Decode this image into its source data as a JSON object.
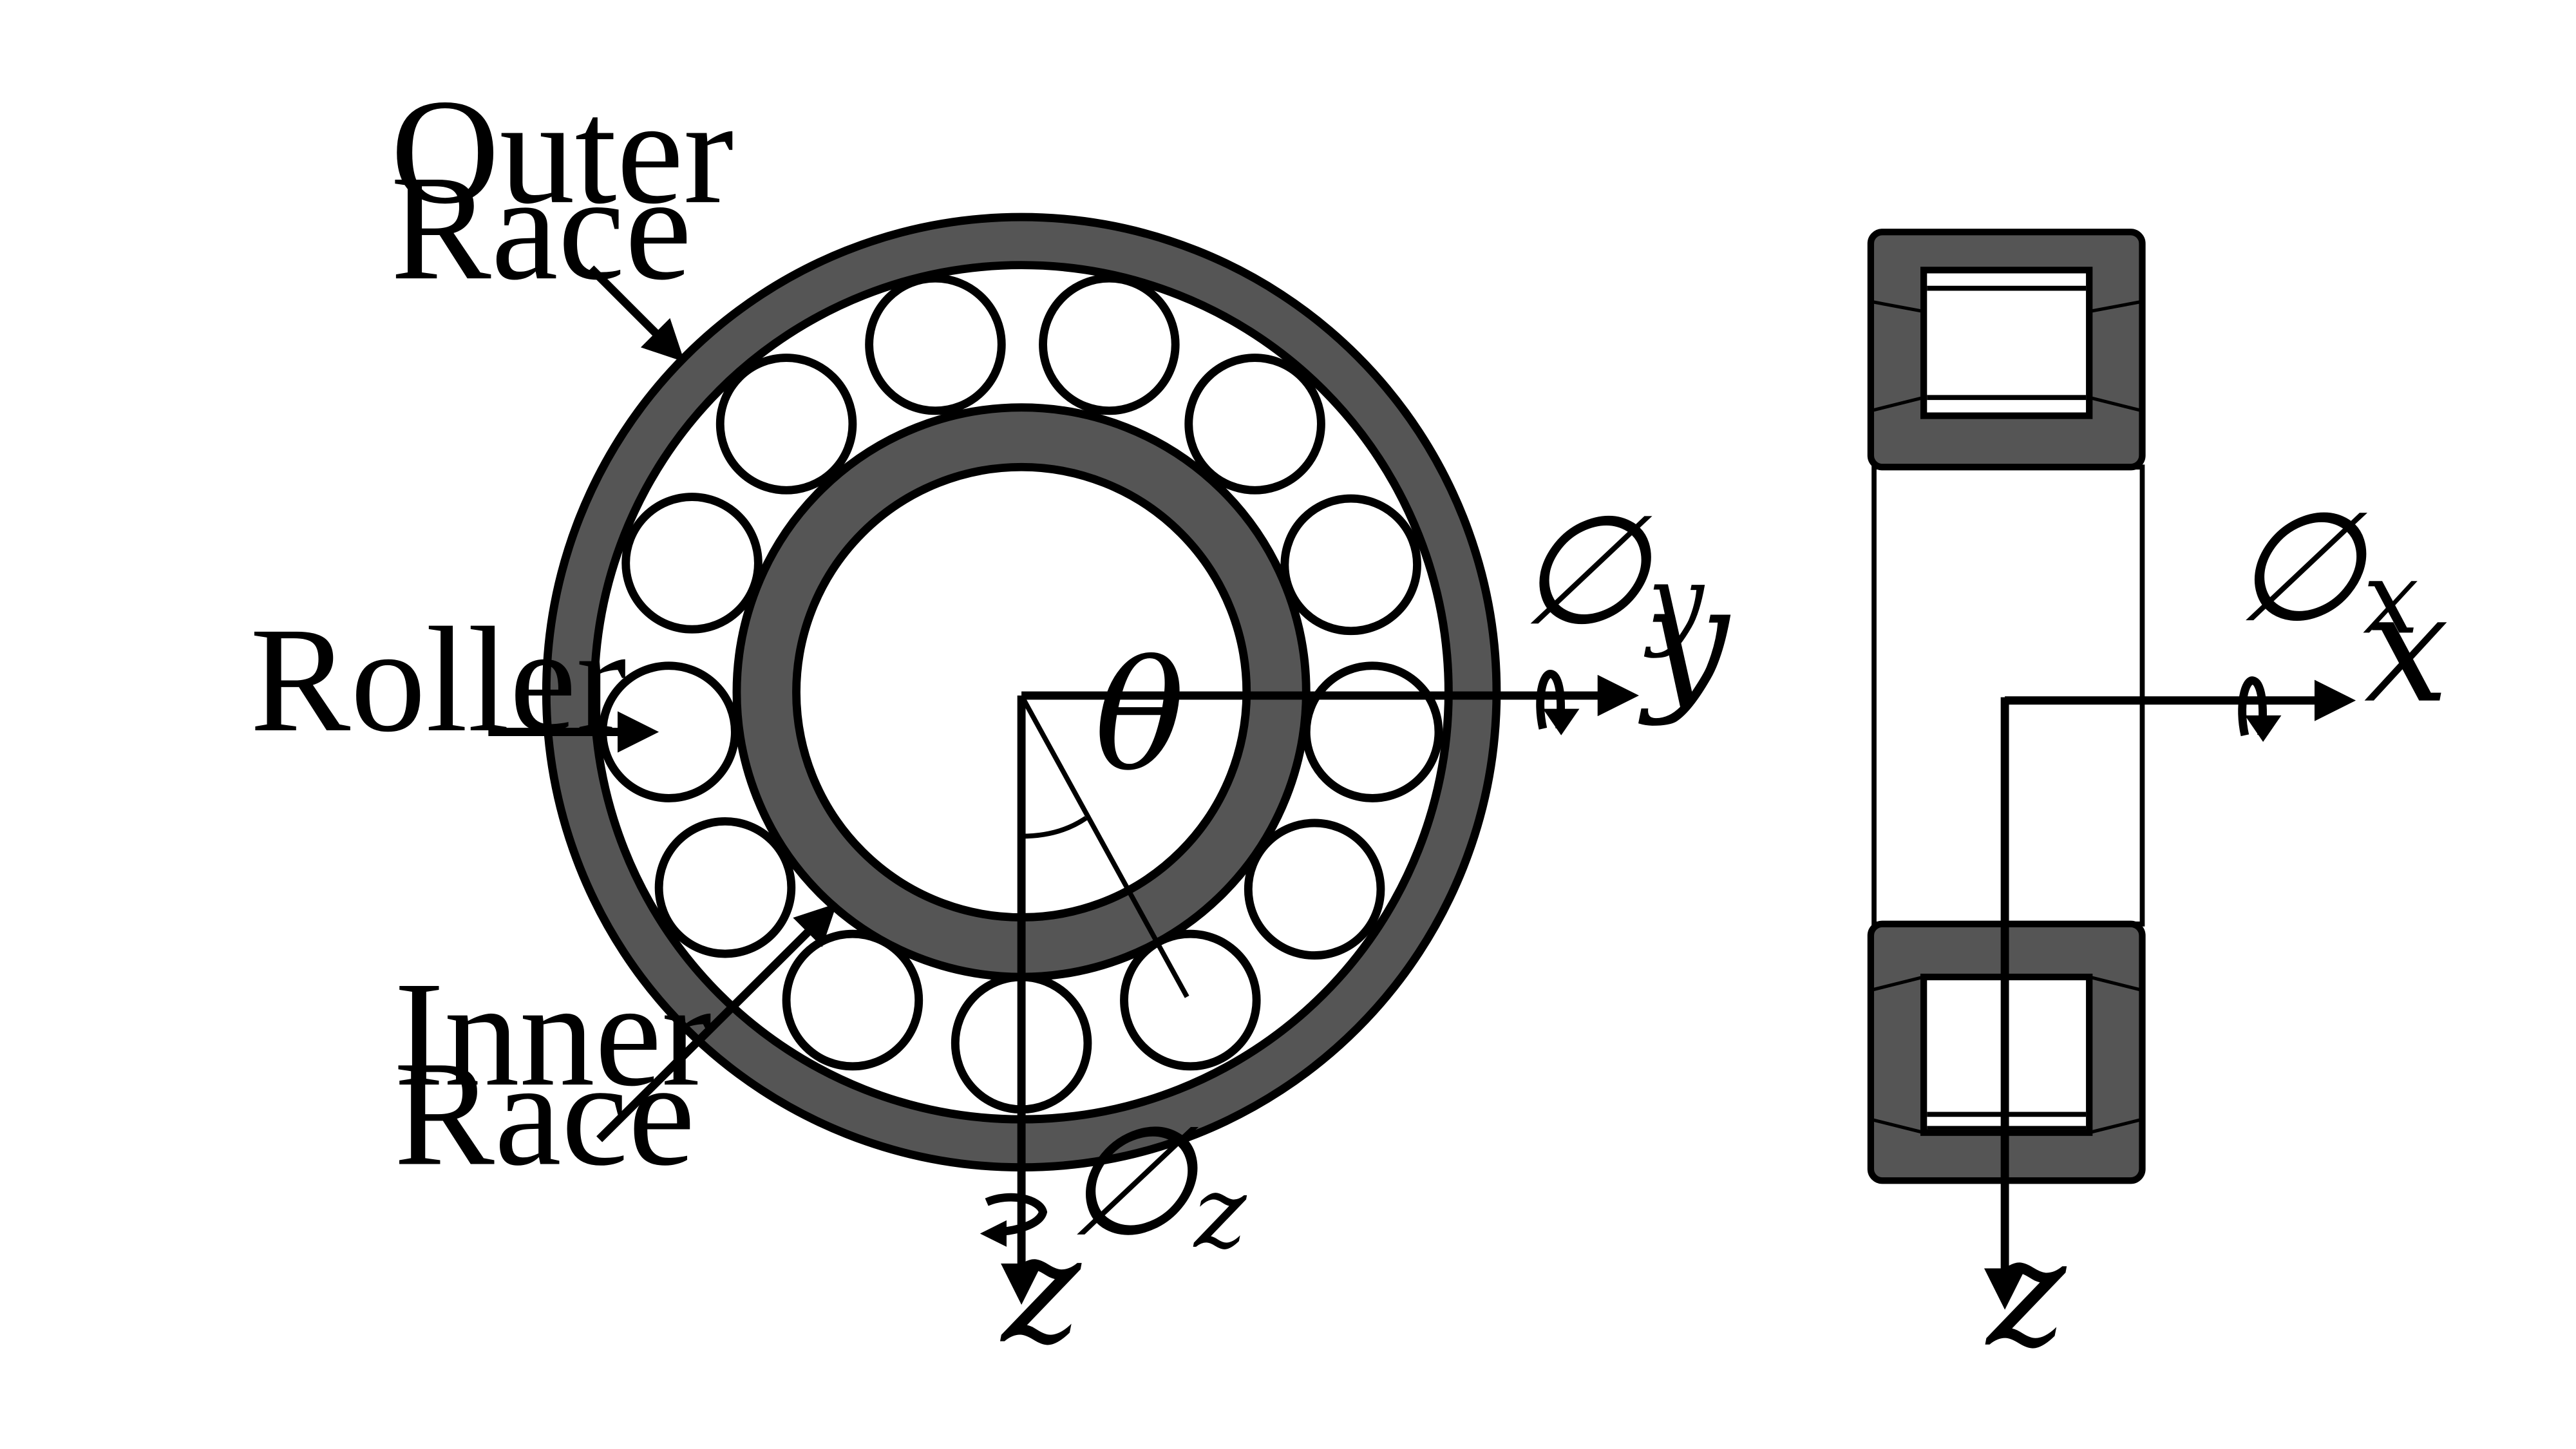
{
  "labels": {
    "outer_race": [
      "Outer",
      "Race"
    ],
    "roller": "Roller",
    "inner_race": [
      "Inner",
      "Race"
    ]
  },
  "symbols": {
    "theta": "θ",
    "y_axis": "y",
    "z_axis_front": "z",
    "x_axis": "x",
    "z_axis_side": "z",
    "phi": "∅",
    "phi_y_sub": "y",
    "phi_z_sub": "z",
    "phi_x_sub": "x"
  },
  "colors": {
    "race_fill": "#555555",
    "stroke": "#000000",
    "background": "#ffffff"
  }
}
